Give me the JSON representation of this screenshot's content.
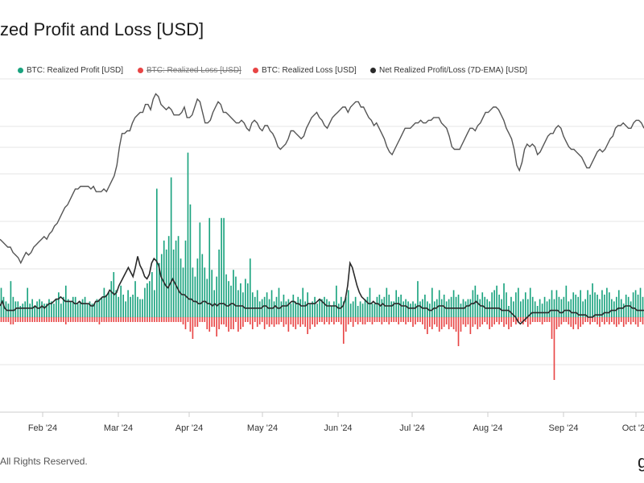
{
  "title": "zed Profit and Loss [USD]",
  "footer": "All Rights Reserved.",
  "brand": "g",
  "colors": {
    "profit": "#1aa37f",
    "loss": "#e84545",
    "ema": "#2a2a2a",
    "price": "#555555",
    "grid": "#e6e6e6"
  },
  "legend": [
    {
      "label": "BTC: Realized Profit [USD]",
      "color": "#1aa37f",
      "disabled": false
    },
    {
      "label": "BTC: Realized Loss [USD]",
      "color": "#e84545",
      "disabled": true
    },
    {
      "label": "BTC: Realized Loss [USD]",
      "color": "#e84545",
      "disabled": false
    },
    {
      "label": "Net Realized Profit/Loss (7D-EMA) [USD]",
      "color": "#2a2a2a",
      "disabled": false
    }
  ],
  "chart_data": {
    "type": "bar",
    "x_ticks": [
      "Feb '24",
      "Mar '24",
      "Apr '24",
      "May '24",
      "Jun '24",
      "Jul '24",
      "Aug '24",
      "Sep '24",
      "Oct '24"
    ],
    "grid": true,
    "y_range": [
      -1,
      1
    ],
    "profit_values": [
      0.13,
      0.09,
      0.07,
      0.06,
      0.16,
      0.09,
      0.07,
      0.07,
      0.05,
      0.06,
      0.07,
      0.13,
      0.06,
      0.08,
      0.05,
      0.07,
      0.08,
      0.07,
      0.06,
      0.06,
      0.08,
      0.07,
      0.06,
      0.08,
      0.11,
      0.06,
      0.09,
      0.14,
      0.08,
      0.07,
      0.09,
      0.09,
      0.06,
      0.07,
      0.08,
      0.09,
      0.06,
      0.07,
      0.06,
      0.06,
      0.08,
      0.08,
      0.09,
      0.13,
      0.1,
      0.11,
      0.16,
      0.2,
      0.12,
      0.09,
      0.14,
      0.1,
      0.07,
      0.12,
      0.09,
      0.1,
      0.16,
      0.09,
      0.08,
      0.08,
      0.13,
      0.15,
      0.16,
      0.2,
      0.12,
      0.57,
      0.24,
      0.28,
      0.34,
      0.3,
      0.36,
      0.62,
      0.3,
      0.34,
      0.36,
      0.26,
      0.22,
      0.34,
      0.73,
      0.5,
      0.22,
      0.18,
      0.26,
      0.42,
      0.28,
      0.22,
      0.17,
      0.44,
      0.21,
      0.12,
      0.18,
      0.3,
      0.44,
      0.44,
      0.19,
      0.16,
      0.14,
      0.21,
      0.18,
      0.12,
      0.15,
      0.11,
      0.17,
      0.15,
      0.26,
      0.11,
      0.09,
      0.12,
      0.07,
      0.08,
      0.09,
      0.11,
      0.08,
      0.12,
      0.07,
      0.09,
      0.13,
      0.07,
      0.1,
      0.07,
      0.08,
      0.06,
      0.1,
      0.07,
      0.09,
      0.08,
      0.13,
      0.07,
      0.11,
      0.06,
      0.07,
      0.09,
      0.06,
      0.08,
      0.08,
      0.09,
      0.08,
      0.07,
      0.05,
      0.07,
      0.14,
      0.06,
      0.09,
      0.07,
      0.09,
      0.12,
      0.06,
      0.07,
      0.09,
      0.05,
      0.07,
      0.06,
      0.08,
      0.09,
      0.13,
      0.06,
      0.06,
      0.09,
      0.1,
      0.08,
      0.09,
      0.13,
      0.1,
      0.07,
      0.07,
      0.12,
      0.09,
      0.1,
      0.07,
      0.08,
      0.07,
      0.06,
      0.07,
      0.06,
      0.16,
      0.07,
      0.08,
      0.1,
      0.07,
      0.06,
      0.13,
      0.07,
      0.08,
      0.12,
      0.08,
      0.1,
      0.07,
      0.08,
      0.09,
      0.12,
      0.09,
      0.1,
      0.06,
      0.08,
      0.07,
      0.08,
      0.08,
      0.12,
      0.14,
      0.1,
      0.08,
      0.11,
      0.09,
      0.08,
      0.07,
      0.11,
      0.12,
      0.14,
      0.1,
      0.08,
      0.15,
      0.11,
      0.05,
      0.09,
      0.07,
      0.11,
      0.13,
      0.07,
      0.08,
      0.11,
      0.08,
      0.13,
      0.09,
      0.07,
      0.05,
      0.08,
      0.06,
      0.09,
      0.07,
      0.08,
      0.12,
      0.08,
      0.12,
      0.09,
      0.08,
      0.09,
      0.14,
      0.07,
      0.08,
      0.11,
      0.1,
      0.09,
      0.12,
      0.07,
      0.08,
      0.12,
      0.1,
      0.15,
      0.11,
      0.1,
      0.08,
      0.12,
      0.1,
      0.13,
      0.11,
      0.08,
      0.07,
      0.09,
      0.12,
      0.08,
      0.06,
      0.1,
      0.09,
      0.07,
      0.11,
      0.12,
      0.1,
      0.13,
      0.09
    ],
    "loss_values": [
      0.02,
      0.02,
      0.02,
      0.02,
      0.03,
      0.03,
      0.02,
      0.02,
      0.02,
      0.02,
      0.02,
      0.02,
      0.02,
      0.02,
      0.02,
      0.02,
      0.02,
      0.02,
      0.02,
      0.02,
      0.02,
      0.02,
      0.02,
      0.02,
      0.02,
      0.02,
      0.02,
      0.03,
      0.02,
      0.02,
      0.02,
      0.02,
      0.02,
      0.02,
      0.02,
      0.02,
      0.02,
      0.02,
      0.02,
      0.02,
      0.02,
      0.03,
      0.02,
      0.02,
      0.02,
      0.02,
      0.02,
      0.02,
      0.02,
      0.02,
      0.02,
      0.02,
      0.02,
      0.02,
      0.02,
      0.02,
      0.02,
      0.02,
      0.02,
      0.02,
      0.02,
      0.02,
      0.02,
      0.02,
      0.02,
      0.02,
      0.02,
      0.02,
      0.02,
      0.02,
      0.02,
      0.02,
      0.02,
      0.02,
      0.02,
      0.02,
      0.03,
      0.05,
      0.02,
      0.06,
      0.09,
      0.04,
      0.04,
      0.02,
      0.02,
      0.02,
      0.05,
      0.06,
      0.04,
      0.04,
      0.08,
      0.05,
      0.03,
      0.03,
      0.04,
      0.06,
      0.05,
      0.05,
      0.02,
      0.06,
      0.05,
      0.04,
      0.02,
      0.02,
      0.03,
      0.05,
      0.02,
      0.04,
      0.03,
      0.02,
      0.05,
      0.03,
      0.04,
      0.03,
      0.04,
      0.03,
      0.03,
      0.02,
      0.04,
      0.03,
      0.06,
      0.03,
      0.04,
      0.05,
      0.03,
      0.04,
      0.03,
      0.04,
      0.07,
      0.05,
      0.03,
      0.04,
      0.03,
      0.02,
      0.02,
      0.03,
      0.02,
      0.03,
      0.02,
      0.03,
      0.02,
      0.02,
      0.03,
      0.11,
      0.06,
      0.03,
      0.02,
      0.04,
      0.02,
      0.03,
      0.02,
      0.03,
      0.03,
      0.02,
      0.02,
      0.03,
      0.02,
      0.02,
      0.02,
      0.03,
      0.02,
      0.02,
      0.03,
      0.02,
      0.02,
      0.02,
      0.03,
      0.02,
      0.02,
      0.03,
      0.02,
      0.02,
      0.04,
      0.03,
      0.02,
      0.02,
      0.03,
      0.05,
      0.07,
      0.04,
      0.05,
      0.03,
      0.04,
      0.06,
      0.05,
      0.04,
      0.03,
      0.05,
      0.04,
      0.05,
      0.06,
      0.12,
      0.06,
      0.03,
      0.04,
      0.03,
      0.07,
      0.04,
      0.03,
      0.05,
      0.04,
      0.03,
      0.02,
      0.03,
      0.05,
      0.04,
      0.03,
      0.02,
      0.03,
      0.02,
      0.04,
      0.03,
      0.05,
      0.04,
      0.02,
      0.03,
      0.02,
      0.02,
      0.03,
      0.02,
      0.04,
      0.03,
      0.02,
      0.02,
      0.02,
      0.02,
      0.03,
      0.02,
      0.02,
      0.02,
      0.09,
      0.26,
      0.05,
      0.04,
      0.03,
      0.02,
      0.02,
      0.03,
      0.04,
      0.05,
      0.03,
      0.05,
      0.04,
      0.03,
      0.02,
      0.02,
      0.03,
      0.02,
      0.02,
      0.03,
      0.04,
      0.02,
      0.03,
      0.02,
      0.03,
      0.02,
      0.03,
      0.04,
      0.03,
      0.02,
      0.04,
      0.03,
      0.02,
      0.03,
      0.02,
      0.03,
      0.04,
      0.02,
      0.03,
      0.03,
      0.02,
      0.03,
      0.02,
      0.02,
      0.03,
      0.03,
      0.05,
      0.02
    ],
    "ema_values": [
      0.05,
      0.07,
      0.04,
      0.03,
      0.03,
      0.03,
      0.03,
      0.04,
      0.04,
      0.04,
      0.04,
      0.04,
      0.04,
      0.04,
      0.04,
      0.05,
      0.04,
      0.04,
      0.05,
      0.04,
      0.05,
      0.06,
      0.06,
      0.07,
      0.08,
      0.08,
      0.09,
      0.08,
      0.07,
      0.07,
      0.07,
      0.07,
      0.06,
      0.06,
      0.07,
      0.06,
      0.06,
      0.06,
      0.06,
      0.05,
      0.05,
      0.07,
      0.07,
      0.08,
      0.09,
      0.09,
      0.1,
      0.12,
      0.11,
      0.1,
      0.11,
      0.14,
      0.16,
      0.18,
      0.2,
      0.22,
      0.2,
      0.18,
      0.22,
      0.27,
      0.23,
      0.21,
      0.18,
      0.17,
      0.19,
      0.24,
      0.26,
      0.25,
      0.23,
      0.18,
      0.16,
      0.14,
      0.13,
      0.15,
      0.17,
      0.15,
      0.13,
      0.11,
      0.1,
      0.1,
      0.09,
      0.08,
      0.08,
      0.07,
      0.07,
      0.06,
      0.06,
      0.07,
      0.07,
      0.06,
      0.06,
      0.05,
      0.06,
      0.05,
      0.06,
      0.06,
      0.06,
      0.05,
      0.05,
      0.06,
      0.06,
      0.05,
      0.05,
      0.05,
      0.05,
      0.04,
      0.04,
      0.04,
      0.04,
      0.04,
      0.04,
      0.04,
      0.04,
      0.05,
      0.05,
      0.04,
      0.04,
      0.04,
      0.05,
      0.04,
      0.04,
      0.05,
      0.05,
      0.05,
      0.06,
      0.07,
      0.07,
      0.06,
      0.06,
      0.05,
      0.05,
      0.05,
      0.06,
      0.06,
      0.06,
      0.06,
      0.07,
      0.08,
      0.07,
      0.06,
      0.05,
      0.05,
      0.05,
      0.05,
      0.05,
      0.04,
      0.04,
      0.05,
      0.08,
      0.14,
      0.24,
      0.22,
      0.18,
      0.14,
      0.11,
      0.09,
      0.08,
      0.07,
      0.06,
      0.06,
      0.07,
      0.06,
      0.06,
      0.05,
      0.06,
      0.05,
      0.05,
      0.05,
      0.05,
      0.06,
      0.06,
      0.06,
      0.05,
      0.05,
      0.05,
      0.04,
      0.04,
      0.04,
      0.04,
      0.05,
      0.05,
      0.04,
      0.04,
      0.04,
      0.03,
      0.03,
      0.04,
      0.04,
      0.05,
      0.05,
      0.05,
      0.04,
      0.04,
      0.04,
      0.04,
      0.04,
      0.04,
      0.04,
      0.04,
      0.04,
      0.05,
      0.05,
      0.06,
      0.06,
      0.07,
      0.06,
      0.05,
      0.05,
      0.04,
      0.04,
      0.04,
      0.04,
      0.04,
      0.04,
      0.04,
      0.03,
      0.03,
      0.03,
      0.03,
      0.02,
      0.01,
      0.0,
      -0.02,
      -0.03,
      -0.02,
      -0.01,
      0.0,
      0.01,
      0.02,
      0.02,
      0.02,
      0.02,
      0.02,
      0.02,
      0.02,
      0.02,
      0.03,
      0.03,
      0.03,
      0.03,
      0.02,
      0.02,
      0.03,
      0.03,
      0.03,
      0.02,
      0.02,
      0.02,
      0.01,
      0.01,
      0.01,
      0.01,
      0.0,
      0.0,
      0.0,
      0.01,
      0.01,
      0.01,
      0.01,
      0.02,
      0.02,
      0.02,
      0.03,
      0.03,
      0.03,
      0.04,
      0.04,
      0.04,
      0.05,
      0.05,
      0.05,
      0.04,
      0.04,
      0.03,
      0.03,
      0.03,
      0.03
    ],
    "price_values": [
      0.38,
      0.37,
      0.36,
      0.35,
      0.35,
      0.33,
      0.32,
      0.31,
      0.29,
      0.31,
      0.33,
      0.32,
      0.33,
      0.35,
      0.36,
      0.37,
      0.38,
      0.39,
      0.38,
      0.4,
      0.41,
      0.43,
      0.44,
      0.46,
      0.48,
      0.5,
      0.51,
      0.53,
      0.55,
      0.57,
      0.57,
      0.58,
      0.58,
      0.58,
      0.58,
      0.57,
      0.58,
      0.56,
      0.56,
      0.56,
      0.57,
      0.56,
      0.58,
      0.6,
      0.62,
      0.66,
      0.73,
      0.78,
      0.78,
      0.79,
      0.79,
      0.82,
      0.84,
      0.85,
      0.86,
      0.86,
      0.89,
      0.89,
      0.87,
      0.91,
      0.93,
      0.92,
      0.89,
      0.88,
      0.87,
      0.88,
      0.87,
      0.85,
      0.85,
      0.85,
      0.86,
      0.88,
      0.84,
      0.84,
      0.85,
      0.88,
      0.91,
      0.9,
      0.86,
      0.82,
      0.82,
      0.83,
      0.86,
      0.88,
      0.9,
      0.89,
      0.86,
      0.86,
      0.85,
      0.84,
      0.83,
      0.82,
      0.82,
      0.83,
      0.82,
      0.8,
      0.79,
      0.82,
      0.83,
      0.82,
      0.8,
      0.79,
      0.81,
      0.81,
      0.79,
      0.78,
      0.76,
      0.73,
      0.72,
      0.73,
      0.74,
      0.76,
      0.79,
      0.79,
      0.78,
      0.77,
      0.76,
      0.77,
      0.8,
      0.82,
      0.84,
      0.85,
      0.86,
      0.84,
      0.83,
      0.81,
      0.8,
      0.82,
      0.84,
      0.85,
      0.86,
      0.87,
      0.88,
      0.88,
      0.86,
      0.88,
      0.89,
      0.9,
      0.9,
      0.88,
      0.88,
      0.86,
      0.84,
      0.83,
      0.81,
      0.82,
      0.8,
      0.78,
      0.76,
      0.73,
      0.71,
      0.7,
      0.72,
      0.74,
      0.76,
      0.78,
      0.8,
      0.8,
      0.8,
      0.81,
      0.82,
      0.82,
      0.83,
      0.82,
      0.82,
      0.83,
      0.83,
      0.84,
      0.84,
      0.84,
      0.82,
      0.81,
      0.8,
      0.77,
      0.73,
      0.72,
      0.72,
      0.72,
      0.74,
      0.76,
      0.78,
      0.8,
      0.8,
      0.79,
      0.81,
      0.82,
      0.84,
      0.86,
      0.86,
      0.87,
      0.88,
      0.88,
      0.87,
      0.85,
      0.83,
      0.8,
      0.78,
      0.76,
      0.72,
      0.66,
      0.64,
      0.67,
      0.72,
      0.74,
      0.73,
      0.74,
      0.73,
      0.7,
      0.71,
      0.73,
      0.75,
      0.77,
      0.78,
      0.78,
      0.8,
      0.81,
      0.8,
      0.77,
      0.75,
      0.73,
      0.72,
      0.72,
      0.71,
      0.7,
      0.69,
      0.67,
      0.65,
      0.65,
      0.67,
      0.69,
      0.71,
      0.72,
      0.71,
      0.72,
      0.74,
      0.76,
      0.77,
      0.8,
      0.81,
      0.81,
      0.82,
      0.81,
      0.8,
      0.8,
      0.82,
      0.83,
      0.83,
      0.82,
      0.8
    ]
  }
}
